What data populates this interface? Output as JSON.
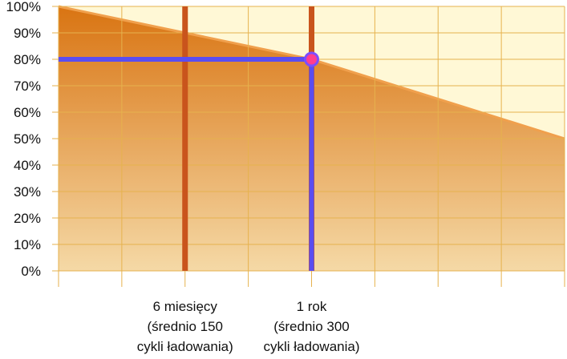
{
  "chart_data": {
    "type": "area",
    "title": "",
    "xlabel": "",
    "ylabel": "",
    "ylim": [
      0,
      100
    ],
    "y_ticks": [
      "0%",
      "10%",
      "20%",
      "30%",
      "40%",
      "50%",
      "60%",
      "70%",
      "80%",
      "90%",
      "100%"
    ],
    "x_months": [
      0,
      3,
      6,
      9,
      12,
      15,
      18,
      21,
      24
    ],
    "series": [
      {
        "x": [
          0,
          12,
          24
        ],
        "values": [
          100,
          80,
          50
        ]
      }
    ],
    "x_labels": [
      {
        "x": 6,
        "lines": [
          "6 miesięcy",
          "(średnio 150",
          "cykli ładowania)"
        ]
      },
      {
        "x": 12,
        "lines": [
          "1 rok",
          "(średnio 300",
          "cykli ładowania)"
        ]
      }
    ],
    "marker": {
      "x": 12,
      "y": 80
    },
    "grid": true,
    "colors": {
      "background": "#fff8d6",
      "area_top": "#d97412",
      "area_bottom": "#f5d9a6",
      "area_edge": "#f0a04d",
      "grid": "#e6b24e",
      "highlight_line": "#c9541c",
      "indicator": "#5a4df0",
      "marker_fill": "#ff3d8f",
      "marker_ring": "#7b4dff"
    }
  }
}
